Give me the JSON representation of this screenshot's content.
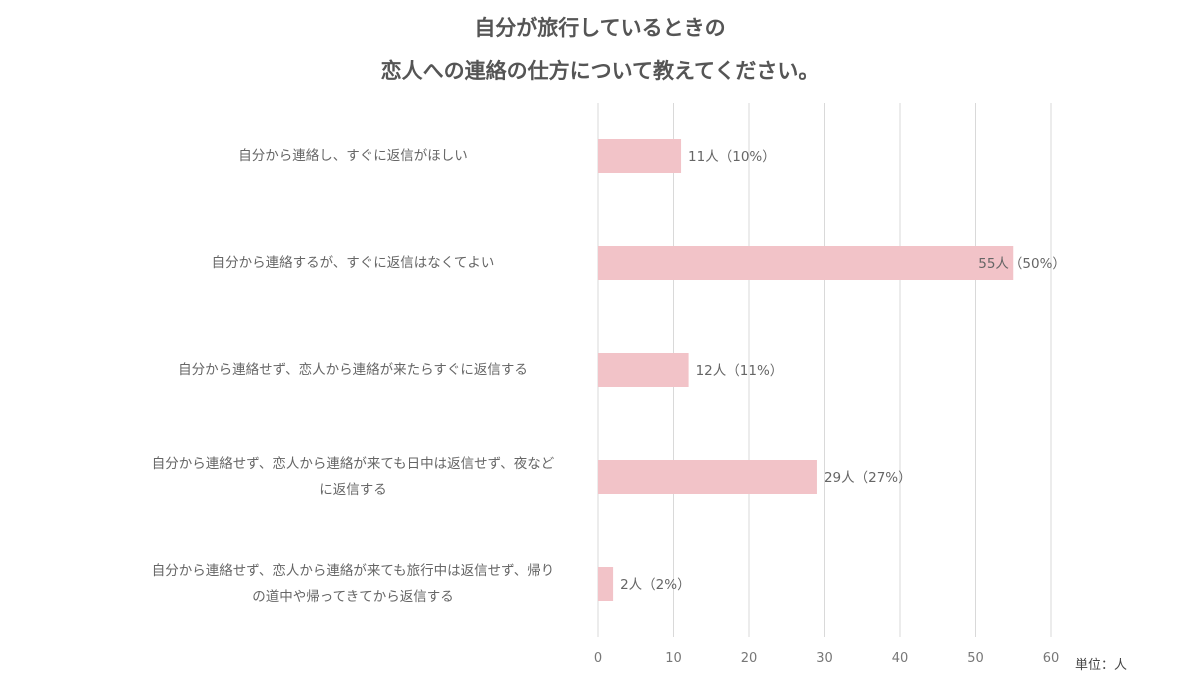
{
  "chart_data": {
    "type": "bar",
    "orientation": "horizontal",
    "title": [
      "自分が旅行しているときの",
      "恋人への連絡の仕方について教えてください。"
    ],
    "categories": [
      [
        "自分から連絡し、すぐに返信がほしい"
      ],
      [
        "自分から連絡するが、すぐに返信はなくてよい"
      ],
      [
        "自分から連絡せず、恋人から連絡が来たらすぐに返信する"
      ],
      [
        "自分から連絡せず、恋人から連絡が来ても日中は返信せず、夜など",
        "に返信する"
      ],
      [
        "自分から連絡せず、恋人から連絡が来ても旅行中は返信せず、帰り",
        "の道中や帰ってきてから返信する"
      ]
    ],
    "values": [
      11,
      55,
      12,
      29,
      2
    ],
    "data_labels": [
      "11人（10%）",
      "55人（50%）",
      "12人（11%）",
      "29人（27%）",
      "2人（2%）"
    ],
    "xlim": [
      0,
      60
    ],
    "xticks": [
      0,
      10,
      20,
      30,
      40,
      50,
      60
    ],
    "unit_label": "単位：人",
    "grid": "vertical",
    "bar_color": "#f2c3c8",
    "grid_color": "#d9d9d9"
  }
}
